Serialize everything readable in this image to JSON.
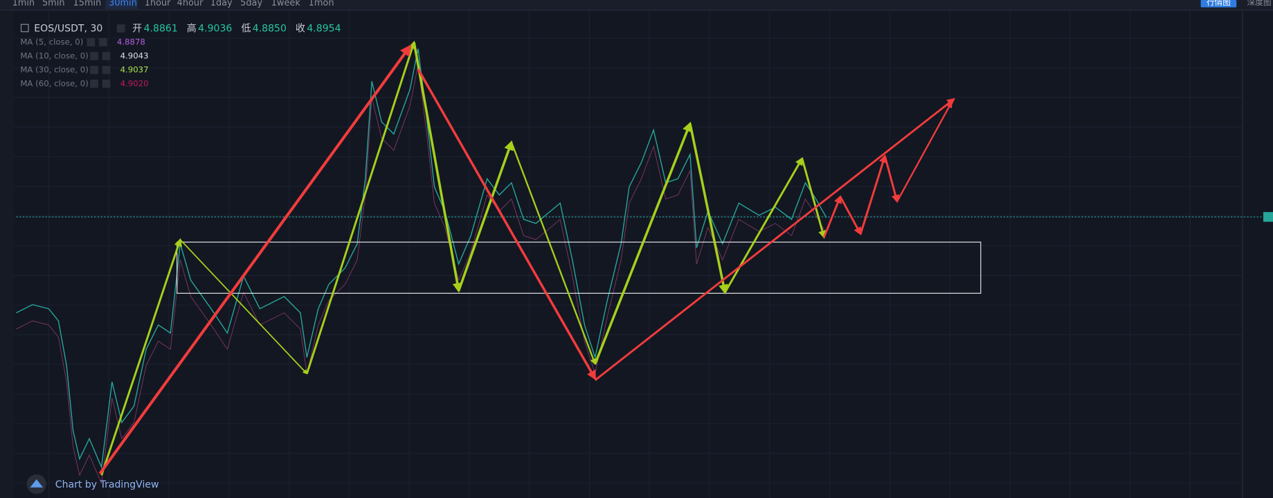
{
  "toolbar": {
    "intervals": [
      "1min",
      "5min",
      "15min",
      "30min",
      "1hour",
      "4hour",
      "1day",
      "5day",
      "1week",
      "1mon"
    ],
    "active": 3
  },
  "top_right": {
    "buttons": [
      "行情图",
      "深度图"
    ]
  },
  "header": {
    "symbol": "EOS/USDT, 30",
    "ohlc": [
      {
        "label": "开",
        "value": "4.8861"
      },
      {
        "label": "高",
        "value": "4.9036"
      },
      {
        "label": "低",
        "value": "4.8850"
      },
      {
        "label": "收",
        "value": "4.8954"
      }
    ]
  },
  "indicators": [
    {
      "name": "MA (5, close, 0)",
      "value": "4.8878"
    },
    {
      "name": "MA (10, close, 0)",
      "value": "4.9043"
    },
    {
      "name": "MA (30, close, 0)",
      "value": "4.9037"
    },
    {
      "name": "MA (60, close, 0)",
      "value": "4.9020"
    }
  ],
  "footer": {
    "brand": "Chart by TradingView"
  }
}
